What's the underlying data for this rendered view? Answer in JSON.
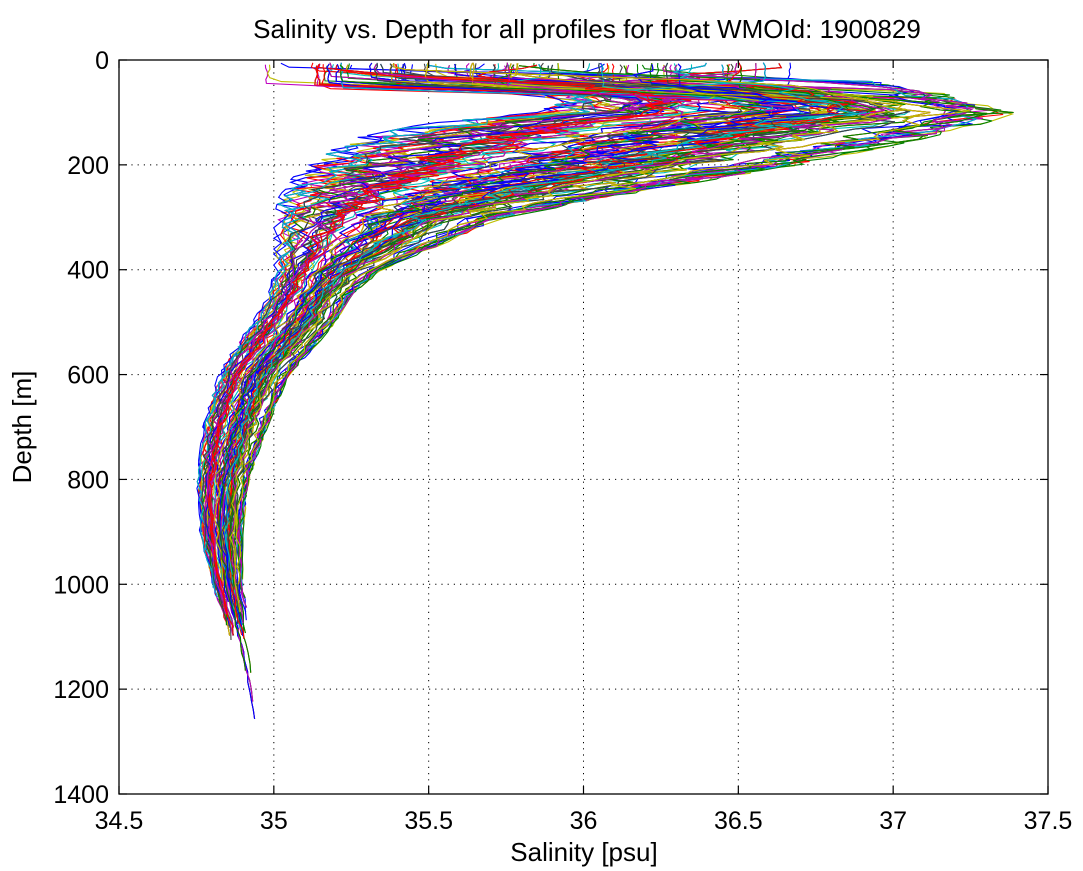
{
  "chart_data": {
    "type": "line",
    "title": "Salinity vs. Depth for all profiles for float WMOId: 1900829",
    "xlabel": "Salinity [psu]",
    "ylabel": "Depth [m]",
    "xlim": [
      34.5,
      37.5
    ],
    "ylim": [
      0,
      1400
    ],
    "y_reversed": true,
    "grid": "dotted",
    "x_ticks": [
      34.5,
      35,
      35.5,
      36,
      36.5,
      37,
      37.5
    ],
    "x_tick_labels": [
      "34.5",
      "35",
      "35.5",
      "36",
      "36.5",
      "37",
      "37.5"
    ],
    "y_ticks": [
      0,
      200,
      400,
      600,
      800,
      1000,
      1200,
      1400
    ],
    "y_tick_labels": [
      "0",
      "200",
      "400",
      "600",
      "800",
      "1000",
      "1200",
      "1400"
    ],
    "colors": [
      "#0000ff",
      "#008000",
      "#ff0000",
      "#00bfbf",
      "#bf00bf",
      "#bfbf00",
      "#404040"
    ],
    "profile_count": 210,
    "series_envelope": {
      "depth": [
        10,
        40,
        60,
        80,
        100,
        120,
        150,
        200,
        250,
        300,
        350,
        400,
        450,
        500,
        550,
        600,
        700,
        800,
        900,
        1000,
        1100,
        1200,
        1260
      ],
      "salinity_min": [
        34.88,
        35.4,
        35.8,
        35.9,
        35.85,
        35.5,
        35.25,
        35.1,
        35.02,
        35.0,
        35.0,
        35.0,
        34.98,
        34.93,
        34.87,
        34.82,
        34.77,
        34.75,
        34.76,
        34.8,
        34.85,
        34.9,
        34.93
      ],
      "salinity_max": [
        36.68,
        37.0,
        37.15,
        37.25,
        37.4,
        37.3,
        37.1,
        36.7,
        36.2,
        35.75,
        35.55,
        35.35,
        35.25,
        35.2,
        35.13,
        35.05,
        34.98,
        34.92,
        34.9,
        34.9,
        34.93,
        34.95,
        34.95
      ]
    }
  }
}
